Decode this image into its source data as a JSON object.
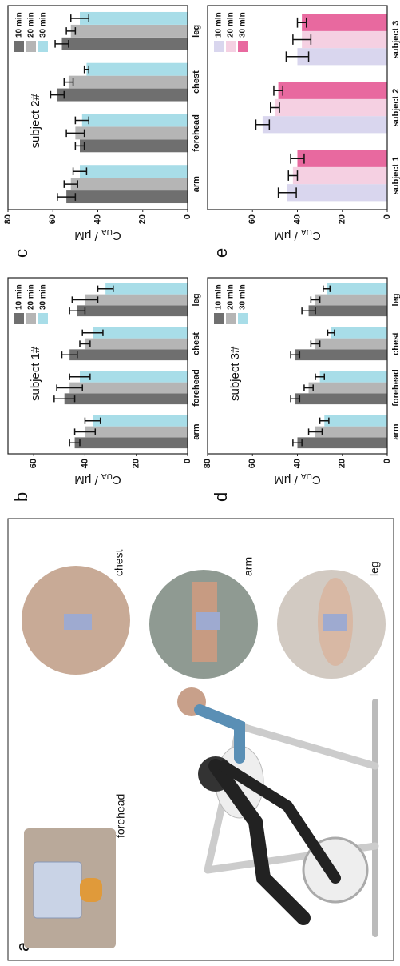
{
  "panel_a": {
    "label": "a",
    "sites": [
      "forehead",
      "chest",
      "arm",
      "leg"
    ]
  },
  "chart_data": [
    {
      "type": "bar",
      "panel_label": "b",
      "title": "subject 1#",
      "ylabel": [
        "C",
        "UA",
        " / μM"
      ],
      "categories": [
        "arm",
        "forehead",
        "chest",
        "leg"
      ],
      "series": [
        {
          "name": "10 min",
          "color": "#6f6f6f",
          "values": [
            44,
            48,
            46,
            43
          ],
          "errors": [
            2,
            4,
            3,
            3
          ]
        },
        {
          "name": "20 min",
          "color": "#b5b5b5",
          "values": [
            40,
            46,
            40,
            40
          ],
          "errors": [
            4,
            5,
            2,
            5
          ]
        },
        {
          "name": "30 min",
          "color": "#a8dde8",
          "values": [
            37,
            42,
            37,
            32
          ],
          "errors": [
            3,
            4,
            4,
            3
          ]
        }
      ],
      "ylim": [
        0,
        70
      ],
      "yticks": [
        0,
        20,
        40,
        60
      ]
    },
    {
      "type": "bar",
      "panel_label": "c",
      "title": "subject 2#",
      "ylabel": [
        "C",
        "UA",
        " / μM"
      ],
      "categories": [
        "arm",
        "forehead",
        "chest",
        "leg"
      ],
      "series": [
        {
          "name": "10 min",
          "color": "#6f6f6f",
          "values": [
            54,
            48,
            58,
            56
          ],
          "errors": [
            4,
            2,
            3,
            3
          ]
        },
        {
          "name": "20 min",
          "color": "#b5b5b5",
          "values": [
            52,
            50,
            53,
            52
          ],
          "errors": [
            3,
            4,
            2,
            2
          ]
        },
        {
          "name": "30 min",
          "color": "#a8dde8",
          "values": [
            48,
            47,
            45,
            48
          ],
          "errors": [
            3,
            3,
            1,
            4
          ]
        }
      ],
      "ylim": [
        0,
        80
      ],
      "yticks": [
        0,
        20,
        40,
        60,
        80
      ]
    },
    {
      "type": "bar",
      "panel_label": "d",
      "title": "subject 3#",
      "ylabel": [
        "C",
        "UA",
        " / μM"
      ],
      "categories": [
        "arm",
        "forehead",
        "chest",
        "leg"
      ],
      "series": [
        {
          "name": "10 min",
          "color": "#6f6f6f",
          "values": [
            40,
            41,
            41,
            35
          ],
          "errors": [
            2,
            2,
            2,
            3
          ]
        },
        {
          "name": "20 min",
          "color": "#b5b5b5",
          "values": [
            32,
            35,
            32,
            32
          ],
          "errors": [
            3,
            2,
            2,
            2
          ]
        },
        {
          "name": "30 min",
          "color": "#a8dde8",
          "values": [
            28,
            30,
            25,
            27
          ],
          "errors": [
            2,
            2,
            1.5,
            1.5
          ]
        }
      ],
      "ylim": [
        0,
        80
      ],
      "yticks": [
        0,
        20,
        40,
        60,
        80
      ]
    },
    {
      "type": "bar",
      "panel_label": "e",
      "ylabel": [
        "C",
        "UA",
        " / μM"
      ],
      "categories": [
        "subject 1",
        "subject 2",
        "subject 3"
      ],
      "series": [
        {
          "name": "10 min",
          "color": "#d9d6ee",
          "values": [
            44.5,
            55.5,
            40
          ],
          "errors": [
            4,
            3,
            5
          ]
        },
        {
          "name": "20 min",
          "color": "#f5d0e2",
          "values": [
            42,
            50,
            38
          ],
          "errors": [
            2,
            2,
            4
          ]
        },
        {
          "name": "30 min",
          "color": "#e8699f",
          "values": [
            40,
            48.5,
            38
          ],
          "errors": [
            3,
            2,
            2
          ]
        }
      ],
      "ylim": [
        0,
        80
      ],
      "yticks": [
        0,
        20,
        40,
        60
      ]
    }
  ]
}
